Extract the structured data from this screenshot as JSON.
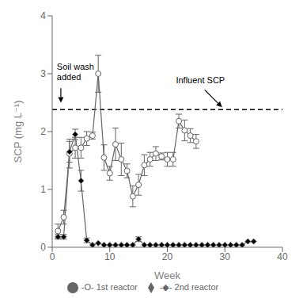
{
  "chart_data": {
    "type": "line",
    "xlabel": "Week",
    "ylabel": "SCP (mg L⁻¹)",
    "xlim": [
      0,
      40
    ],
    "xticks": [
      0,
      10,
      20,
      30,
      40
    ],
    "ylim": [
      0,
      4
    ],
    "yticks": [
      0,
      1,
      2,
      3,
      4
    ],
    "grid": false,
    "legend": "bottom",
    "series": [
      {
        "name": "-O-  1st reactor",
        "color": "#666666",
        "marker": "open_circle",
        "line_style": "solid",
        "x": [
          1,
          2,
          3,
          4,
          5,
          6,
          7,
          8,
          9,
          10,
          11,
          12,
          13,
          14,
          15,
          16,
          17,
          18,
          19,
          20,
          21,
          22,
          23,
          24,
          25
        ],
        "values": [
          0.28,
          0.52,
          1.62,
          1.72,
          1.72,
          1.88,
          1.93,
          3.0,
          1.55,
          1.28,
          1.78,
          1.52,
          1.32,
          0.88,
          1.08,
          1.42,
          1.52,
          1.62,
          1.57,
          1.52,
          1.52,
          2.18,
          2.02,
          1.93,
          1.83
        ],
        "errors": [
          0.12,
          0.12,
          0.25,
          0.18,
          0.18,
          0.12,
          0.06,
          0.32,
          0.22,
          0.12,
          0.28,
          0.28,
          0.12,
          0.18,
          0.18,
          0.18,
          0.12,
          0.12,
          0.06,
          0.12,
          0.12,
          0.12,
          0.18,
          0.12,
          0.12
        ]
      },
      {
        "name": "-◆-  2nd reactor",
        "color": "#666666",
        "marker": "filled_diamond",
        "line_style": "solid",
        "x": [
          1,
          2,
          3,
          4,
          5,
          6,
          7,
          8,
          9,
          10,
          11,
          12,
          13,
          14,
          15,
          16,
          17,
          18,
          19,
          20,
          21,
          22,
          23,
          24,
          25,
          26,
          27,
          28,
          29,
          30,
          31,
          32,
          33,
          34,
          35
        ],
        "values": [
          0.18,
          0.18,
          1.65,
          1.95,
          1.15,
          0.12,
          0.04,
          0.07,
          0.04,
          0.04,
          0.04,
          0.04,
          0.04,
          0.04,
          0.14,
          0.04,
          0.04,
          0.04,
          0.04,
          0.04,
          0.04,
          0.04,
          0.04,
          0.04,
          0.04,
          0.04,
          0.04,
          0.04,
          0.04,
          0.04,
          0.04,
          0.04,
          0.04,
          0.1,
          0.1
        ],
        "errors": [
          0.04,
          0.04,
          0.18,
          0.09,
          0.18,
          0.04,
          0.0,
          0.0,
          0.0,
          0.0,
          0.0,
          0.0,
          0.0,
          0.0,
          0.04,
          0.0,
          0.0,
          0.0,
          0.0,
          0.0,
          0.0,
          0.0,
          0.0,
          0.0,
          0.0,
          0.0,
          0.0,
          0.0,
          0.0,
          0.0,
          0.0,
          0.0,
          0.0,
          0.0,
          0.0
        ]
      }
    ],
    "reference_lines": [
      {
        "y": 2.38,
        "color": "black",
        "line_style": "dashed"
      }
    ],
    "annotations": [
      {
        "text": "Soil wash\nadded",
        "x": 0.8,
        "y": 3.18,
        "arrow": {
          "from": [
            1.5,
            2.75
          ],
          "to": [
            1.5,
            2.5
          ]
        }
      },
      {
        "text": "Influent SCP",
        "x": 21.5,
        "y": 2.95,
        "arrow": {
          "from": [
            26.5,
            2.72
          ],
          "to": [
            29.5,
            2.42
          ]
        }
      }
    ]
  }
}
